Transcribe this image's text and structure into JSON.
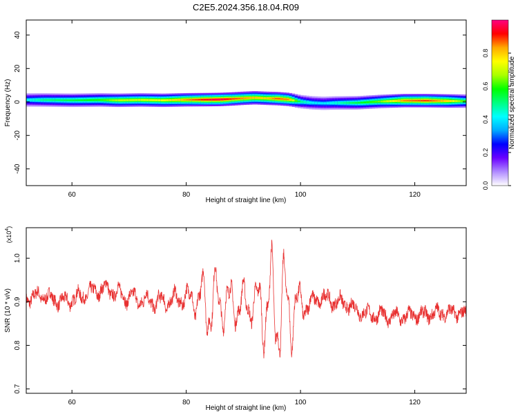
{
  "figure_title": "C2E5.2024.356.18.04.R09",
  "chart_data": [
    {
      "type": "heatmap",
      "title": "C2E5.2024.356.18.04.R09",
      "xlabel": "Height of straight line (km)",
      "ylabel": "Frequency (Hz)",
      "xlim": [
        52,
        129
      ],
      "ylim": [
        -50,
        49
      ],
      "x_ticks": [
        60,
        80,
        100,
        120
      ],
      "y_ticks": [
        40,
        20,
        0,
        -20,
        -40
      ],
      "band_profile": {
        "x": [
          52,
          55,
          60,
          65,
          68,
          72,
          76,
          80,
          84,
          86,
          88,
          90,
          92,
          94,
          96,
          98,
          100,
          102,
          104,
          106,
          110,
          114,
          118,
          122,
          126,
          129
        ],
        "center": [
          1.2,
          1.2,
          1.0,
          1.2,
          1.0,
          1.2,
          1.0,
          1.3,
          1.4,
          1.5,
          1.8,
          2.2,
          2.5,
          2.2,
          2.0,
          1.5,
          0.2,
          -0.5,
          -0.8,
          -0.6,
          -0.5,
          0.3,
          0.8,
          0.8,
          0.6,
          0.5
        ],
        "amplitude": [
          0.42,
          0.5,
          0.55,
          0.6,
          0.7,
          0.72,
          0.75,
          0.85,
          0.95,
          0.98,
          0.9,
          0.85,
          0.82,
          0.8,
          0.88,
          0.85,
          0.5,
          0.42,
          0.4,
          0.45,
          0.55,
          0.65,
          0.85,
          0.9,
          0.8,
          0.6
        ]
      },
      "colorbar": {
        "label": "Normalized spectral amplitude",
        "ticks": [
          0.0,
          0.2,
          0.4,
          0.6,
          0.8
        ],
        "range": [
          0,
          1
        ],
        "colors": [
          "#ffffff",
          "#b08cff",
          "#6a00ff",
          "#0000ff",
          "#00aaff",
          "#00ffff",
          "#00ff80",
          "#00ff00",
          "#aaff00",
          "#ffff00",
          "#ffaa00",
          "#ff0000",
          "#ff0080"
        ]
      }
    },
    {
      "type": "line",
      "xlabel": "Height of straight line (km)",
      "ylabel": "SNR (10 * v/v)",
      "yscale_label": "(x10",
      "yscale_exp": "4",
      "yscale_close": ")",
      "xlim": [
        52,
        129
      ],
      "ylim": [
        0.69,
        1.07
      ],
      "x_ticks": [
        60,
        80,
        100,
        120
      ],
      "y_ticks": [
        0.7,
        0.8,
        0.9,
        1.0
      ],
      "series": [
        {
          "color": "#e83030",
          "trend": {
            "x": [
              52,
              54,
              56,
              58,
              60,
              62,
              64,
              66,
              68,
              70,
              72,
              74,
              76,
              78,
              80,
              82,
              84,
              86,
              88,
              90,
              92,
              94,
              96,
              98,
              100,
              102,
              104,
              106,
              108,
              110,
              112,
              114,
              116,
              118,
              120,
              122,
              124,
              126,
              128,
              129
            ],
            "y": [
              0.905,
              0.915,
              0.91,
              0.9,
              0.905,
              0.915,
              0.925,
              0.93,
              0.92,
              0.91,
              0.905,
              0.9,
              0.9,
              0.905,
              0.91,
              0.905,
              0.9,
              0.9,
              0.895,
              0.895,
              0.895,
              0.89,
              0.89,
              0.885,
              0.89,
              0.9,
              0.91,
              0.9,
              0.895,
              0.88,
              0.87,
              0.87,
              0.865,
              0.865,
              0.87,
              0.87,
              0.875,
              0.875,
              0.875,
              0.87
            ]
          },
          "oscillation": {
            "x": [
              52,
              80,
              82,
              84,
              86,
              88,
              90,
              92,
              94,
              96,
              98,
              100,
              102,
              129
            ],
            "amplitude": [
              0.012,
              0.025,
              0.05,
              0.11,
              0.07,
              0.06,
              0.055,
              0.05,
              0.13,
              0.16,
              0.12,
              0.05,
              0.018,
              0.012
            ]
          }
        }
      ]
    }
  ]
}
